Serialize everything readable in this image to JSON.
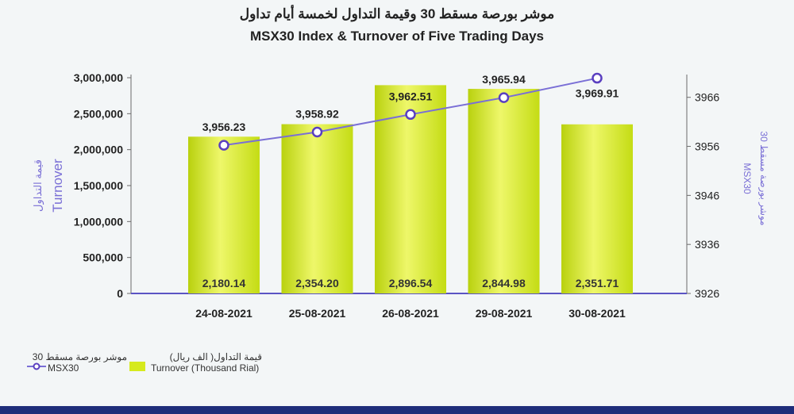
{
  "title_ar": "موشر بورصة مسقط 30 وقيمة التداول لخمسة أيام تداول",
  "title_en": "MSX30 Index & Turnover of Five Trading Days",
  "chart_data": {
    "type": "bar",
    "categories": [
      "24-08-2021",
      "25-08-2021",
      "26-08-2021",
      "29-08-2021",
      "30-08-2021"
    ],
    "series": [
      {
        "name": "Turnover (Thousand Rial)",
        "name_ar": "قيمة التداول( الف ريال)",
        "type": "bar",
        "axis": "left",
        "values": [
          2180.14,
          2354.2,
          2896.54,
          2844.98,
          2351.71
        ],
        "labels": [
          "2,180.14",
          "2,354.20",
          "2,896.54",
          "2,844.98",
          "2,351.71"
        ],
        "color": "#d6ea1e"
      },
      {
        "name": "MSX30",
        "name_ar": "موشر بورصة مسقط 30",
        "type": "line",
        "axis": "right",
        "values": [
          3956.23,
          3958.92,
          3962.51,
          3965.94,
          3969.91
        ],
        "labels": [
          "3,956.23",
          "3,958.92",
          "3,962.51",
          "3,965.94",
          "3,969.91"
        ],
        "color": "#7a6fd6"
      }
    ],
    "y_left": {
      "label_en": "Turnover",
      "label_ar": "قيمة التداول",
      "ticks": [
        "0",
        "500,000",
        "1,000,000",
        "1,500,000",
        "2,000,000",
        "2,500,000",
        "3,000,000"
      ]
    },
    "y_right": {
      "label_en": "MSX30",
      "label_ar": "موشر بورصة مسقط 30",
      "ticks": [
        "3926",
        "3936",
        "3946",
        "3956",
        "3966"
      ]
    },
    "legend_position": "bottom-left"
  },
  "colors": {
    "bar": "#d6ea1e",
    "line": "#7a6fd6",
    "axis_line": "#5b54c4",
    "band": "#1e2d7a"
  }
}
